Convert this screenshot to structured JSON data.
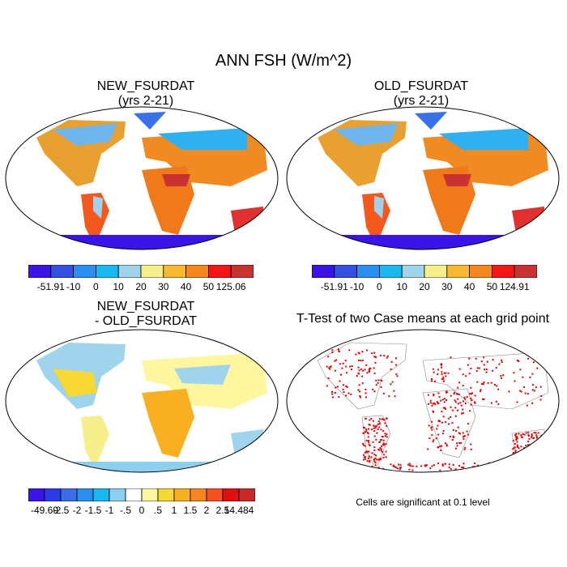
{
  "main_title": "ANN FSH (W/m^2)",
  "panels": [
    {
      "title_line1": "NEW_FSURDAT",
      "title_line2": "(yrs 2-21)",
      "colorbar": {
        "colors": [
          "#3a14e6",
          "#3350e0",
          "#2b8ef0",
          "#1ab8f0",
          "#9fd4ec",
          "#f5f08c",
          "#f8b832",
          "#f6861e",
          "#f41616",
          "#c83232"
        ],
        "labels": [
          "-51.91",
          "-10",
          "0",
          "10",
          "20",
          "30",
          "40",
          "50",
          "125.06"
        ]
      }
    },
    {
      "title_line1": "OLD_FSURDAT",
      "title_line2": "(yrs 2-21)",
      "colorbar": {
        "colors": [
          "#3a14e6",
          "#3350e0",
          "#2b8ef0",
          "#1ab8f0",
          "#9fd4ec",
          "#f5f08c",
          "#f8b832",
          "#f6861e",
          "#f41616",
          "#c83232"
        ],
        "labels": [
          "-51.91",
          "-10",
          "0",
          "10",
          "20",
          "30",
          "40",
          "50",
          "124.91"
        ]
      }
    },
    {
      "title_line1": "NEW_FSURDAT",
      "title_line2": "- OLD_FSURDAT",
      "colorbar": {
        "colors": [
          "#3a14e6",
          "#2a3ce8",
          "#3a6ee6",
          "#2a8ff0",
          "#1ab8f0",
          "#8ccfee",
          "#ffffff",
          "#fff6a0",
          "#f8d832",
          "#f8b020",
          "#f6861e",
          "#f45020",
          "#e01010",
          "#c82828"
        ],
        "labels": [
          "-49.69",
          "-2.5",
          "-2",
          "-1.5",
          "-1",
          "-.5",
          "0",
          ".5",
          "1",
          "1.5",
          "2",
          "2.5",
          "14.484"
        ]
      }
    },
    {
      "title_line1": "T-Test of two Case means at each grid point",
      "footnote": "Cells are significant at 0.1 level"
    }
  ]
}
